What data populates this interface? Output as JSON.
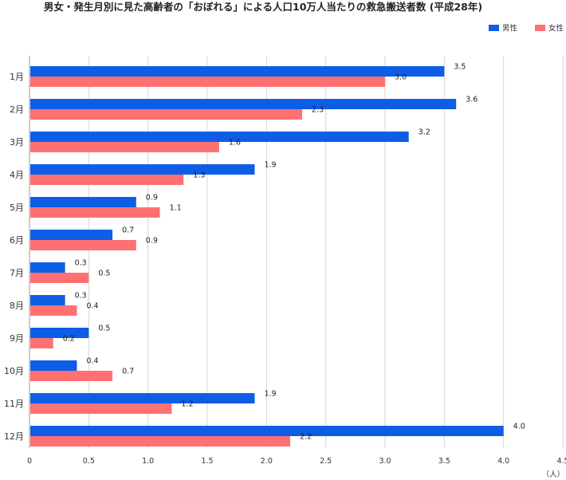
{
  "chart_data": {
    "type": "bar",
    "orientation": "horizontal",
    "title": "男女・発生月別に見た高齢者の「おぼれる」による人口10万人当たりの救急搬送者数 (平成28年)",
    "categories": [
      "1月",
      "2月",
      "3月",
      "4月",
      "5月",
      "6月",
      "7月",
      "8月",
      "9月",
      "10月",
      "11月",
      "12月"
    ],
    "series": [
      {
        "name": "男性",
        "color": "#0d5ee6",
        "values": [
          3.5,
          3.6,
          3.2,
          1.9,
          0.9,
          0.7,
          0.3,
          0.3,
          0.5,
          0.4,
          1.9,
          4.0
        ]
      },
      {
        "name": "女性",
        "color": "#ff7073",
        "values": [
          3.0,
          2.3,
          1.6,
          1.3,
          1.1,
          0.9,
          0.5,
          0.4,
          0.2,
          0.7,
          1.2,
          2.2
        ]
      }
    ],
    "value_labels": {
      "男性": [
        "3.5",
        "3.6",
        "3.2",
        "1.9",
        "0.9",
        "0.7",
        "0.3",
        "0.3",
        "0.5",
        "0.4",
        "1.9",
        "4.0"
      ],
      "女性": [
        "3.0",
        "2.3",
        "1.6",
        "1.3",
        "1.1",
        "0.9",
        "0.5",
        "0.4",
        "0.2",
        "0.7",
        "1.2",
        "2.2"
      ]
    },
    "xlim": [
      0,
      4.5
    ],
    "xticks": [
      0,
      0.5,
      1.0,
      1.5,
      2.0,
      2.5,
      3.0,
      3.5,
      4.0,
      4.5
    ],
    "xtick_labels": [
      "0",
      "0.5",
      "1.0",
      "1.5",
      "2.0",
      "2.5",
      "3.0",
      "3.5",
      "4.0",
      "4.5"
    ],
    "xlabel": "（人）",
    "ylabel": "",
    "grid": true,
    "legend_position": "top-right"
  }
}
